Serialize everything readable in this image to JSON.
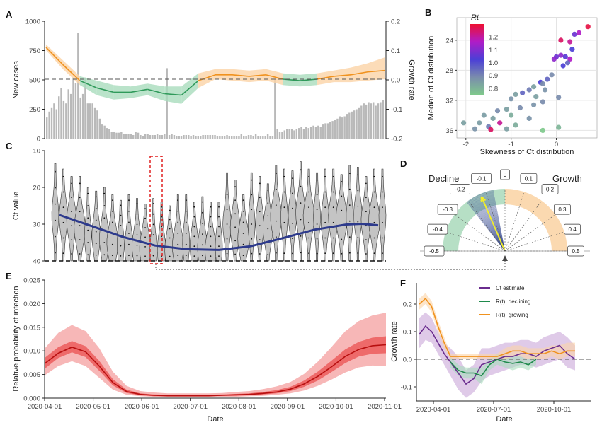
{
  "panels": {
    "A": "A",
    "B": "B",
    "C": "C",
    "D": "D",
    "E": "E",
    "F": "F"
  },
  "chart_data": [
    {
      "id": "A",
      "type": "bar",
      "ylabel": "New cases",
      "y2label": "Growth rate",
      "ylim": [
        0,
        1000
      ],
      "y2lim": [
        -0.2,
        0.2
      ],
      "yticks": [
        "0",
        "250",
        "500",
        "750",
        "1000"
      ],
      "y2ticks": [
        "-0.2",
        "-0.1",
        "0.0",
        "0.1",
        "0.2"
      ],
      "reference_line": 0,
      "cases": [
        180,
        230,
        260,
        300,
        250,
        360,
        430,
        320,
        300,
        420,
        380,
        520,
        470,
        900,
        350,
        380,
        520,
        300,
        300,
        300,
        260,
        240,
        170,
        120,
        110,
        90,
        80,
        60,
        60,
        50,
        50,
        60,
        40,
        40,
        40,
        40,
        30,
        60,
        50,
        30,
        20,
        40,
        40,
        30,
        30,
        30,
        40,
        30,
        30,
        40,
        600,
        30,
        40,
        30,
        20,
        20,
        20,
        30,
        30,
        30,
        20,
        30,
        20,
        20,
        20,
        30,
        30,
        30,
        30,
        30,
        30,
        20,
        20,
        20,
        20,
        30,
        20,
        20,
        20,
        20,
        20,
        40,
        20,
        20,
        30,
        30,
        20,
        40,
        20,
        20,
        20,
        20,
        40,
        20,
        20,
        510,
        80,
        60,
        60,
        70,
        80,
        80,
        80,
        70,
        80,
        90,
        100,
        80,
        100,
        90,
        100,
        110,
        100,
        110,
        100,
        120,
        130,
        130,
        140,
        150,
        160,
        170,
        190,
        180,
        190,
        210,
        220,
        230,
        240,
        250,
        260,
        280,
        300,
        290,
        310,
        300,
        310,
        280,
        300,
        310,
        330
      ],
      "growth": {
        "x": [
          0,
          0.05,
          0.1,
          0.15,
          0.2,
          0.25,
          0.3,
          0.35,
          0.4,
          0.45,
          0.5,
          0.55,
          0.6,
          0.65,
          0.7,
          0.75,
          0.8,
          0.85,
          0.9,
          0.95,
          1.0
        ],
        "mean": [
          0.11,
          0.05,
          -0.005,
          -0.03,
          -0.045,
          -0.045,
          -0.035,
          -0.05,
          -0.055,
          -0.005,
          0.015,
          0.015,
          0.01,
          0.015,
          0.0,
          -0.005,
          0.0,
          0.01,
          0.015,
          0.025,
          0.03
        ],
        "lower": [
          0.1,
          0.035,
          -0.02,
          -0.055,
          -0.07,
          -0.065,
          -0.055,
          -0.075,
          -0.085,
          -0.03,
          -0.0,
          -0.005,
          -0.01,
          -0.005,
          -0.02,
          -0.025,
          -0.02,
          -0.01,
          -0.01,
          -0.005,
          0.0
        ],
        "upper": [
          0.12,
          0.065,
          0.01,
          -0.005,
          -0.02,
          -0.025,
          -0.015,
          -0.025,
          -0.025,
          0.02,
          0.035,
          0.035,
          0.03,
          0.035,
          0.02,
          0.015,
          0.02,
          0.03,
          0.04,
          0.055,
          0.075
        ]
      }
    },
    {
      "id": "B",
      "type": "scatter",
      "xlabel": "Skewness of Ct distribution",
      "ylabel": "Median of Ct distribution",
      "xlim": [
        -2.2,
        0.9
      ],
      "ylim": [
        37,
        21
      ],
      "xticks": [
        "-2",
        "-1",
        "0"
      ],
      "yticks": [
        "24",
        "28",
        "32",
        "36"
      ],
      "legend_title": "Rt",
      "legend_ticks": [
        "0.8",
        "0.9",
        "1.0",
        "1.1",
        "1.2"
      ],
      "color_range": [
        0.75,
        1.3
      ],
      "points": [
        [
          0.7,
          22.2,
          1.28
        ],
        [
          0.5,
          23.0,
          1.15
        ],
        [
          0.4,
          23.2,
          1.05
        ],
        [
          0.1,
          24.0,
          1.25
        ],
        [
          0.3,
          24.2,
          1.2
        ],
        [
          0.35,
          25.2,
          1.0
        ],
        [
          0.1,
          26.0,
          1.1
        ],
        [
          0.2,
          26.2,
          1.02
        ],
        [
          0.0,
          26.2,
          1.05
        ],
        [
          -0.05,
          26.5,
          1.1
        ],
        [
          0.3,
          26.5,
          1.15
        ],
        [
          0.25,
          27.0,
          0.95
        ],
        [
          0.15,
          27.4,
          1.0
        ],
        [
          -0.1,
          28.6,
          0.9
        ],
        [
          -0.2,
          29.2,
          0.95
        ],
        [
          -0.35,
          29.6,
          1.0
        ],
        [
          -0.3,
          29.8,
          0.9
        ],
        [
          -0.5,
          30.2,
          0.85
        ],
        [
          -0.25,
          30.6,
          0.88
        ],
        [
          -0.6,
          30.6,
          0.92
        ],
        [
          -0.75,
          31.0,
          0.95
        ],
        [
          -0.9,
          31.2,
          0.85
        ],
        [
          -0.45,
          31.5,
          0.85
        ],
        [
          -1.0,
          31.8,
          0.88
        ],
        [
          0.05,
          31.6,
          0.9
        ],
        [
          -0.3,
          32.2,
          0.9
        ],
        [
          -0.5,
          32.6,
          0.88
        ],
        [
          -0.8,
          33.0,
          0.9
        ],
        [
          -1.1,
          33.2,
          0.85
        ],
        [
          -1.3,
          33.4,
          0.9
        ],
        [
          -1.0,
          34.0,
          0.82
        ],
        [
          -1.6,
          34.0,
          0.86
        ],
        [
          -0.6,
          34.4,
          0.88
        ],
        [
          -1.4,
          34.4,
          0.85
        ],
        [
          -1.25,
          35.0,
          1.2
        ],
        [
          -1.7,
          35.0,
          0.86
        ],
        [
          -0.9,
          35.3,
          0.82
        ],
        [
          -1.5,
          35.5,
          0.92
        ],
        [
          -2.05,
          35.0,
          0.85
        ],
        [
          -1.8,
          35.8,
          0.88
        ],
        [
          -1.45,
          35.9,
          1.25
        ],
        [
          -1.1,
          35.8,
          0.85
        ],
        [
          0.05,
          35.6,
          0.8
        ],
        [
          -0.3,
          36.0,
          0.75
        ]
      ]
    },
    {
      "id": "C",
      "type": "violin",
      "ylabel": "Ct value",
      "ylim": [
        40,
        10
      ],
      "yticks": [
        "10",
        "20",
        "30",
        "40"
      ],
      "limit_line": 40,
      "medians": [
        27.5,
        28,
        29,
        31,
        33,
        33,
        34,
        35,
        35.5,
        36,
        36,
        36.5,
        37,
        37,
        37,
        36,
        35,
        36,
        36.5,
        37,
        36,
        30,
        31,
        34,
        30,
        30,
        31,
        28,
        28,
        27.5,
        27,
        28,
        28,
        29,
        28,
        28.5,
        28,
        27.5,
        29,
        29,
        28
      ],
      "smooth": {
        "x": [
          0,
          0.1,
          0.2,
          0.3,
          0.4,
          0.5,
          0.6,
          0.7,
          0.8,
          0.9,
          0.95,
          1.0
        ],
        "y": [
          27.5,
          30.5,
          33.5,
          35.8,
          36.8,
          37.0,
          36.0,
          33.8,
          31.5,
          30.1,
          29.9,
          30.3
        ]
      }
    },
    {
      "id": "D",
      "type": "gauge",
      "left_label": "Decline",
      "right_label": "Growth",
      "tick_labels": [
        "-0.5",
        "-0.4",
        "-0.3",
        "-0.2",
        "-0.1",
        "0",
        "0.1",
        "0.2",
        "0.3",
        "0.4",
        "0.5"
      ],
      "tick_values": [
        -0.5,
        -0.4,
        -0.3,
        -0.2,
        -0.1,
        0,
        0.1,
        0.2,
        0.3,
        0.4,
        0.5
      ],
      "estimate": -0.13,
      "interval": [
        -0.21,
        -0.06
      ]
    },
    {
      "id": "E",
      "type": "area",
      "xlabel": "Date",
      "ylabel": "Relative probability of infection",
      "ylim": [
        0,
        0.025
      ],
      "yticks": [
        "0.000",
        "0.005",
        "0.010",
        "0.015",
        "0.020",
        "0.025"
      ],
      "xticks": [
        "2020-04-01",
        "2020-05-01",
        "2020-06-01",
        "2020-07-01",
        "2020-08-01",
        "2020-09-01",
        "2020-10-01",
        "2020-11-01"
      ],
      "x": [
        0,
        0.04,
        0.08,
        0.12,
        0.16,
        0.2,
        0.24,
        0.28,
        0.32,
        0.36,
        0.4,
        0.44,
        0.48,
        0.52,
        0.56,
        0.6,
        0.64,
        0.68,
        0.72,
        0.76,
        0.8,
        0.84,
        0.88,
        0.92,
        0.96,
        1.0
      ],
      "median": [
        0.0073,
        0.0095,
        0.0108,
        0.0098,
        0.0068,
        0.0033,
        0.0014,
        0.0008,
        0.0006,
        0.0005,
        0.0005,
        0.0005,
        0.0005,
        0.0006,
        0.0007,
        0.0008,
        0.001,
        0.0013,
        0.0019,
        0.003,
        0.0046,
        0.0066,
        0.0088,
        0.0103,
        0.0111,
        0.0113
      ],
      "inner_lo": [
        0.0062,
        0.0085,
        0.0097,
        0.0087,
        0.0058,
        0.0027,
        0.0011,
        0.0006,
        0.0004,
        0.0004,
        0.0004,
        0.0004,
        0.0004,
        0.0005,
        0.0005,
        0.0006,
        0.0008,
        0.001,
        0.0015,
        0.0024,
        0.0037,
        0.0055,
        0.0074,
        0.0088,
        0.0094,
        0.0095
      ],
      "inner_hi": [
        0.0085,
        0.0108,
        0.0121,
        0.011,
        0.0079,
        0.004,
        0.0018,
        0.001,
        0.0008,
        0.0007,
        0.0007,
        0.0007,
        0.0007,
        0.0008,
        0.0009,
        0.001,
        0.0013,
        0.0017,
        0.0024,
        0.0037,
        0.0056,
        0.0079,
        0.0103,
        0.0119,
        0.0128,
        0.0131
      ],
      "outer_lo": [
        0.0048,
        0.0068,
        0.0078,
        0.0068,
        0.0043,
        0.0018,
        0.0007,
        0.0004,
        0.0003,
        0.0002,
        0.0002,
        0.0002,
        0.0002,
        0.0003,
        0.0003,
        0.0004,
        0.0005,
        0.0007,
        0.001,
        0.0016,
        0.0026,
        0.0039,
        0.0054,
        0.0065,
        0.0069,
        0.0068
      ],
      "outer_hi": [
        0.0105,
        0.0138,
        0.0155,
        0.0142,
        0.0106,
        0.0056,
        0.0026,
        0.0015,
        0.0012,
        0.001,
        0.001,
        0.001,
        0.001,
        0.0011,
        0.0013,
        0.0015,
        0.0019,
        0.0025,
        0.0034,
        0.0051,
        0.0077,
        0.0108,
        0.0141,
        0.0163,
        0.0175,
        0.0181
      ]
    },
    {
      "id": "F",
      "type": "line",
      "xlabel": "Date",
      "ylabel": "Growth rate",
      "ylim": [
        -0.15,
        0.26
      ],
      "yticks": [
        "-0.1",
        "0.0",
        "0.1",
        "0.2"
      ],
      "xticks": [
        "2020-04-01",
        "2020-07-01",
        "2020-10-01"
      ],
      "reference_line": 0,
      "series": [
        {
          "name": "Ct estimate",
          "color": "#6a2c8e",
          "x": [
            0,
            0.04,
            0.08,
            0.12,
            0.16,
            0.2,
            0.25,
            0.3,
            0.35,
            0.4,
            0.45,
            0.5,
            0.55,
            0.6,
            0.65,
            0.7,
            0.75,
            0.8,
            0.85,
            0.9,
            0.95,
            1.0
          ],
          "values": [
            0.09,
            0.12,
            0.1,
            0.06,
            0.02,
            -0.01,
            -0.05,
            -0.09,
            -0.07,
            -0.02,
            -0.01,
            0.0,
            0.01,
            0.01,
            0.02,
            0.02,
            0.01,
            0.03,
            0.04,
            0.05,
            0.02,
            0.0
          ],
          "lower": [
            0.04,
            0.07,
            0.06,
            0.02,
            -0.02,
            -0.06,
            -0.11,
            -0.14,
            -0.12,
            -0.08,
            -0.06,
            -0.05,
            -0.04,
            -0.03,
            -0.02,
            -0.02,
            -0.03,
            -0.02,
            -0.01,
            0.0,
            -0.03,
            -0.04
          ],
          "upper": [
            0.15,
            0.17,
            0.15,
            0.1,
            0.06,
            0.04,
            0.01,
            -0.04,
            -0.02,
            0.04,
            0.04,
            0.05,
            0.06,
            0.06,
            0.07,
            0.07,
            0.06,
            0.08,
            0.09,
            0.1,
            0.08,
            0.05
          ]
        },
        {
          "name": "R(t), declining",
          "color": "#1f8a4c",
          "x": [
            0.2,
            0.25,
            0.3,
            0.35,
            0.4,
            0.45,
            0.5,
            0.55,
            0.6,
            0.65,
            0.7,
            0.75
          ],
          "values": [
            -0.01,
            -0.04,
            -0.05,
            -0.05,
            -0.06,
            -0.02,
            0.0,
            -0.01,
            -0.015,
            -0.01,
            -0.02,
            0.0
          ],
          "lower": [
            -0.03,
            -0.06,
            -0.07,
            -0.07,
            -0.09,
            -0.04,
            -0.02,
            -0.03,
            -0.04,
            -0.03,
            -0.04,
            -0.02
          ],
          "upper": [
            0.01,
            -0.02,
            -0.03,
            -0.03,
            -0.03,
            0.0,
            0.02,
            0.01,
            0.01,
            0.01,
            0.0,
            0.02
          ]
        },
        {
          "name": "R(t), growing",
          "color": "#f0921e",
          "x": [
            0,
            0.04,
            0.08,
            0.12,
            0.16,
            0.2,
            0.5,
            0.55,
            0.6,
            0.65,
            0.7,
            0.75,
            0.8,
            0.85,
            0.9,
            0.95,
            1.0
          ],
          "values": [
            0.2,
            0.22,
            0.19,
            0.12,
            0.06,
            0.01,
            0.01,
            0.02,
            0.03,
            0.03,
            0.02,
            0.02,
            0.02,
            0.03,
            0.02,
            0.03,
            0.03
          ],
          "lower": [
            0.18,
            0.2,
            0.17,
            0.1,
            0.04,
            0.0,
            0.0,
            0.0,
            0.01,
            0.01,
            0.0,
            0.0,
            0.0,
            0.01,
            0.0,
            0.01,
            0.01
          ],
          "upper": [
            0.22,
            0.24,
            0.21,
            0.14,
            0.08,
            0.02,
            0.02,
            0.04,
            0.05,
            0.05,
            0.04,
            0.04,
            0.04,
            0.05,
            0.05,
            0.06,
            0.06
          ]
        }
      ]
    }
  ]
}
